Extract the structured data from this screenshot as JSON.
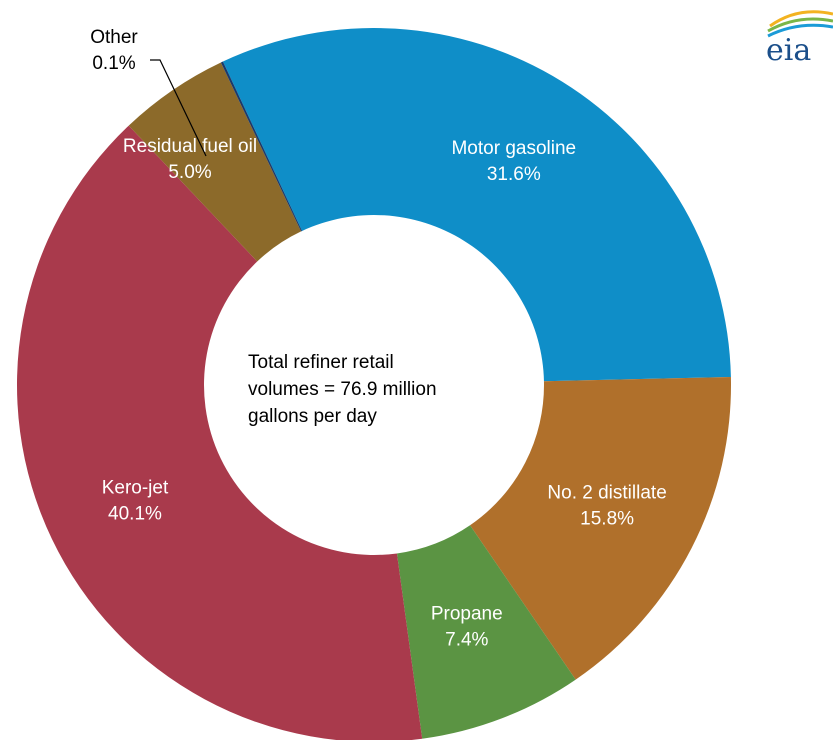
{
  "chart_data": {
    "type": "pie",
    "variant": "donut",
    "center_text": [
      "Total refiner retail",
      "volumes = 76.9 million",
      "gallons per day"
    ],
    "slices": [
      {
        "label": "Motor gasoline",
        "value": 31.6,
        "value_label": "31.6%",
        "color": "#0f8ec8"
      },
      {
        "label": "No. 2 distillate",
        "value": 15.8,
        "value_label": "15.8%",
        "color": "#b0702b"
      },
      {
        "label": "Propane",
        "value": 7.4,
        "value_label": "7.4%",
        "color": "#5b9443"
      },
      {
        "label": "Kero-jet",
        "value": 40.1,
        "value_label": "40.1%",
        "color": "#a93a4c"
      },
      {
        "label": "Residual fuel oil",
        "value": 5.0,
        "value_label": "5.0%",
        "color": "#8c6a2a"
      },
      {
        "label": "Other",
        "value": 0.1,
        "value_label": "0.1%",
        "color": "#1b3a6b"
      }
    ]
  },
  "logo": {
    "text": "eia"
  }
}
